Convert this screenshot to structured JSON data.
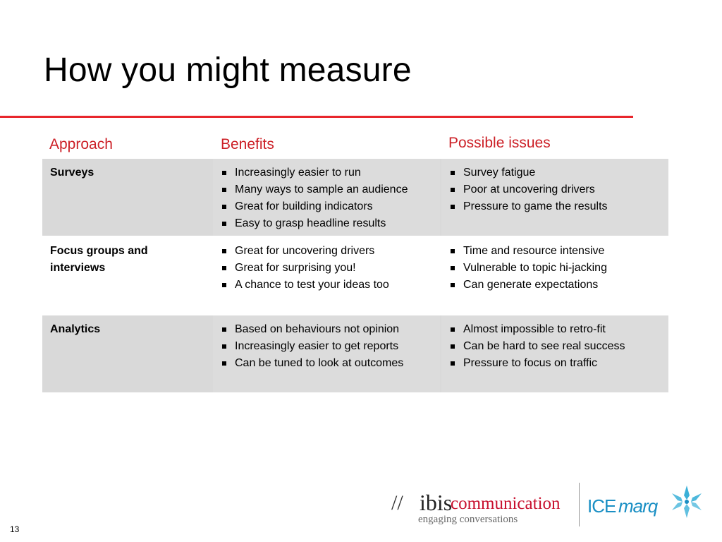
{
  "title": "How you might measure",
  "table": {
    "headers": [
      "Approach",
      "Benefits",
      "Possible issues"
    ],
    "rows": [
      {
        "approach": "Surveys",
        "benefits": [
          "Increasingly easier to run",
          "Many ways to sample an audience",
          "Great for building indicators",
          "Easy to grasp headline results"
        ],
        "issues": [
          "Survey fatigue",
          "Poor at uncovering drivers",
          "Pressure to game the results"
        ]
      },
      {
        "approach": "Focus groups and interviews",
        "benefits": [
          "Great for uncovering drivers",
          "Great for surprising you!",
          "A chance to test your ideas too"
        ],
        "issues": [
          "Time and resource intensive",
          "Vulnerable to topic hi-jacking",
          "Can generate expectations"
        ]
      },
      {
        "approach": "Analytics",
        "benefits": [
          "Based on behaviours not opinion",
          "Increasingly easier to get reports",
          "Can be tuned to look at outcomes"
        ],
        "issues": [
          "Almost impossible to retro-fit",
          "Can be hard to see real success",
          "Pressure to focus on traffic"
        ]
      }
    ]
  },
  "footer": {
    "page_number": "13",
    "ibis_slash": "//",
    "ibis_word": "ibis",
    "ibis_comm": "communication",
    "ibis_tagline": "engaging conversations",
    "icemarq_ice": "ICE",
    "icemarq_marq": "marq"
  },
  "colors": {
    "accent": "#e8262c",
    "header_text": "#cc1f26",
    "row_shade": "#d9d9d9",
    "icemarq_blue": "#1a8fc4"
  }
}
